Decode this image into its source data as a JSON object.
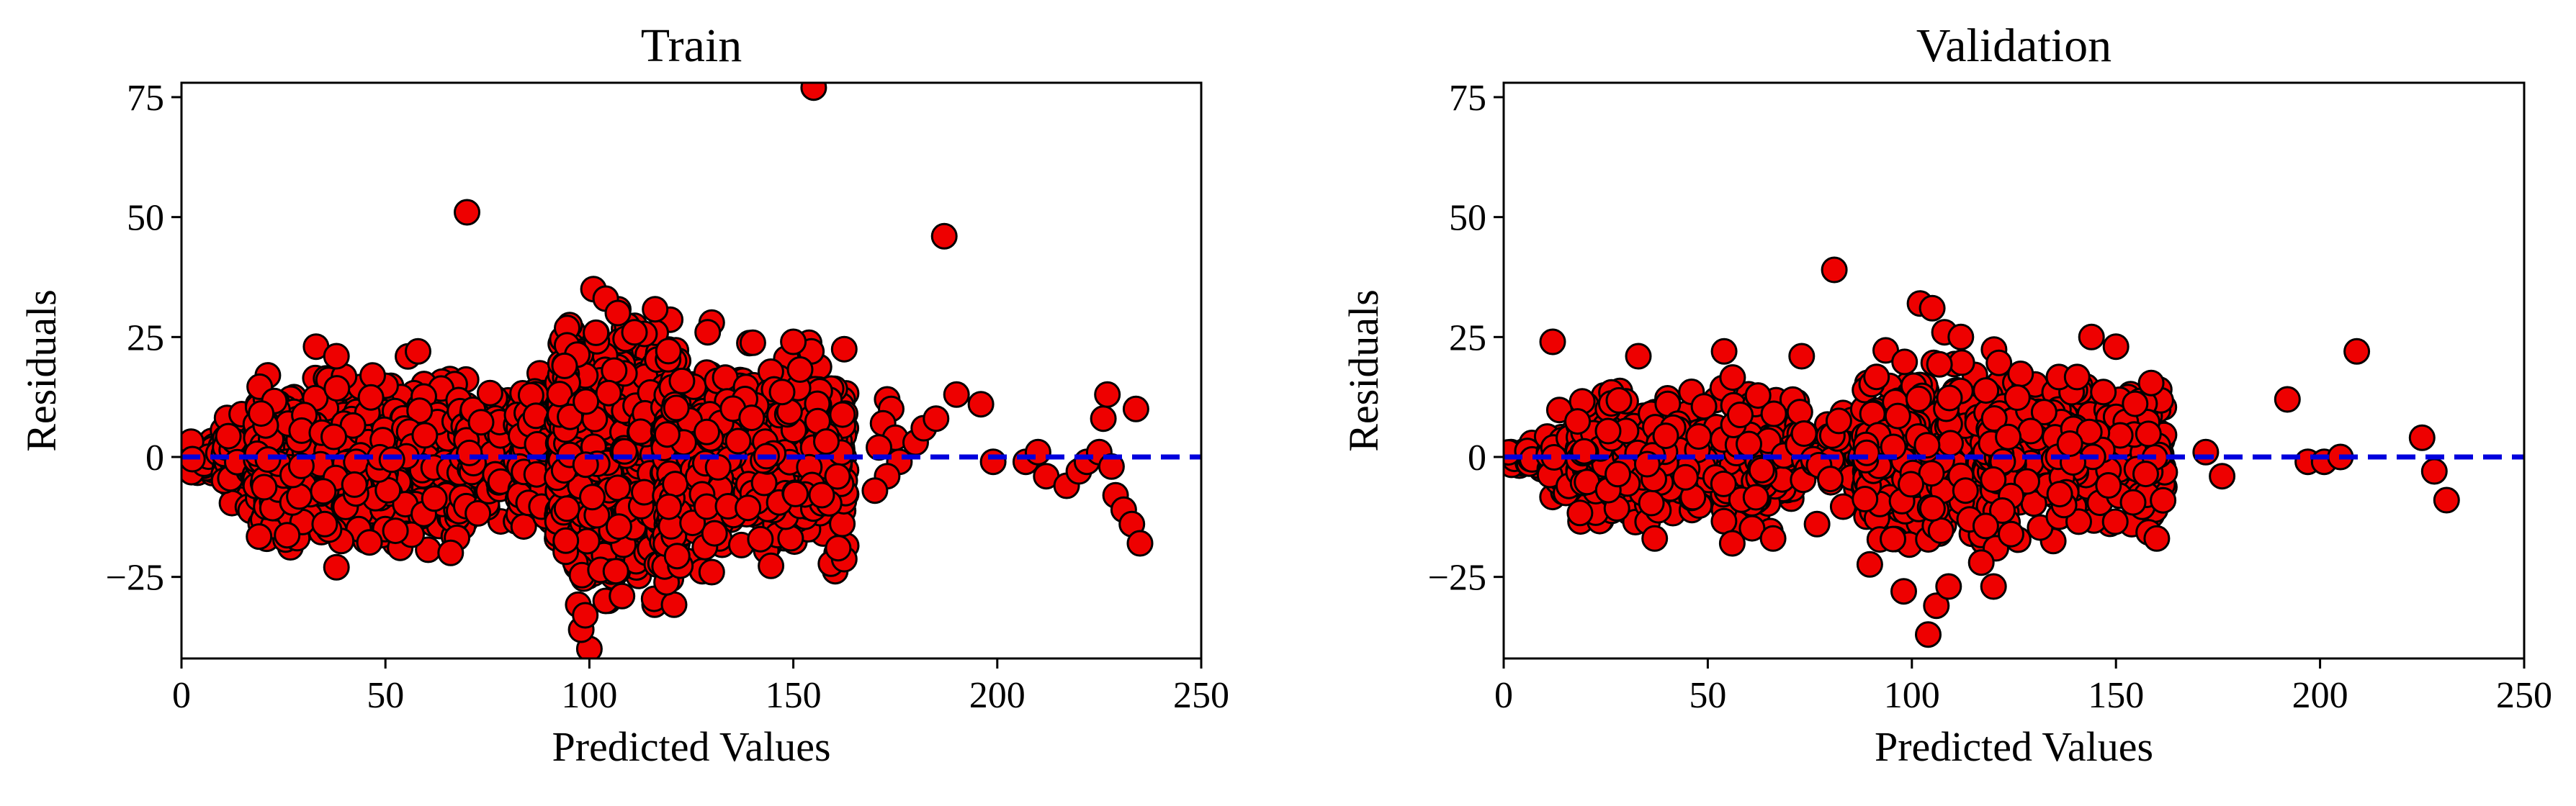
{
  "chart_data": [
    {
      "type": "scatter",
      "title": "Train",
      "xlabel": "Predicted Values",
      "ylabel": "Residuals",
      "xlim": [
        0,
        250
      ],
      "ylim": [
        -42,
        78
      ],
      "x_ticks": [
        0,
        50,
        100,
        150,
        200,
        250
      ],
      "x_tick_labels": [
        "0",
        "50",
        "100",
        "150",
        "200",
        "250"
      ],
      "y_ticks": [
        -25,
        0,
        25,
        50,
        75
      ],
      "y_tick_labels": [
        "−25",
        "0",
        "25",
        "50",
        "75"
      ],
      "grid": false,
      "reference_line": {
        "y": 0,
        "style": "dashed",
        "color": "#0000dd"
      },
      "marker_color": "#ee0000",
      "marker_edge_color": "#000000",
      "point_clusters": [
        {
          "x_range": [
            1,
            10
          ],
          "y_sd": 1.8,
          "count": 60
        },
        {
          "x_range": [
            10,
            20
          ],
          "y_sd": 4,
          "count": 120
        },
        {
          "x_range": [
            18,
            70
          ],
          "y_sd": 7.5,
          "count": 900
        },
        {
          "x_range": [
            68,
            82
          ],
          "y_sd": 6,
          "count": 80
        },
        {
          "x_range": [
            82,
            92
          ],
          "y_sd": 7,
          "count": 120
        },
        {
          "x_range": [
            92,
            122
          ],
          "y_sd": 11,
          "count": 1000
        },
        {
          "x_range": [
            118,
            163
          ],
          "y_sd": 8.5,
          "count": 800
        }
      ],
      "points": [
        {
          "x": 155,
          "y": 77
        },
        {
          "x": 70,
          "y": 51
        },
        {
          "x": 187,
          "y": 46
        },
        {
          "x": 101,
          "y": 35
        },
        {
          "x": 104,
          "y": 33
        },
        {
          "x": 107,
          "y": 30
        },
        {
          "x": 130,
          "y": 28
        },
        {
          "x": 129,
          "y": 26
        },
        {
          "x": 33,
          "y": 23
        },
        {
          "x": 58,
          "y": 22
        },
        {
          "x": 38,
          "y": 21
        },
        {
          "x": 150,
          "y": 24
        },
        {
          "x": 100,
          "y": -40
        },
        {
          "x": 98,
          "y": -36
        },
        {
          "x": 99,
          "y": -33
        },
        {
          "x": 104,
          "y": -30
        },
        {
          "x": 108,
          "y": -29
        },
        {
          "x": 38,
          "y": -23
        },
        {
          "x": 130,
          "y": -24
        },
        {
          "x": 66,
          "y": -20
        },
        {
          "x": 161,
          "y": -19
        },
        {
          "x": 173,
          "y": 12
        },
        {
          "x": 174,
          "y": 10
        },
        {
          "x": 172,
          "y": 7
        },
        {
          "x": 175,
          "y": 4
        },
        {
          "x": 171,
          "y": 2
        },
        {
          "x": 176,
          "y": -1
        },
        {
          "x": 173,
          "y": -4
        },
        {
          "x": 170,
          "y": -7
        },
        {
          "x": 180,
          "y": 3
        },
        {
          "x": 182,
          "y": 6
        },
        {
          "x": 185,
          "y": 8
        },
        {
          "x": 190,
          "y": 13
        },
        {
          "x": 196,
          "y": 11
        },
        {
          "x": 199,
          "y": -1
        },
        {
          "x": 207,
          "y": -1
        },
        {
          "x": 210,
          "y": 1
        },
        {
          "x": 212,
          "y": -4
        },
        {
          "x": 217,
          "y": -6
        },
        {
          "x": 220,
          "y": -3
        },
        {
          "x": 222,
          "y": -1
        },
        {
          "x": 225,
          "y": 1
        },
        {
          "x": 226,
          "y": 8
        },
        {
          "x": 227,
          "y": 13
        },
        {
          "x": 228,
          "y": -2
        },
        {
          "x": 229,
          "y": -8
        },
        {
          "x": 231,
          "y": -11
        },
        {
          "x": 233,
          "y": -14
        },
        {
          "x": 234,
          "y": 10
        },
        {
          "x": 235,
          "y": -18
        }
      ]
    },
    {
      "type": "scatter",
      "title": "Validation",
      "xlabel": "Predicted Values",
      "ylabel": "Residuals",
      "xlim": [
        0,
        250
      ],
      "ylim": [
        -42,
        78
      ],
      "x_ticks": [
        0,
        50,
        100,
        150,
        200,
        250
      ],
      "x_tick_labels": [
        "0",
        "50",
        "100",
        "150",
        "200",
        "250"
      ],
      "y_ticks": [
        -25,
        0,
        25,
        50,
        75
      ],
      "y_tick_labels": [
        "−25",
        "0",
        "25",
        "50",
        "75"
      ],
      "grid": false,
      "reference_line": {
        "y": 0,
        "style": "dashed",
        "color": "#0000dd"
      },
      "marker_color": "#ee0000",
      "marker_edge_color": "#000000",
      "point_clusters": [
        {
          "x_range": [
            1,
            10
          ],
          "y_sd": 1.5,
          "count": 30
        },
        {
          "x_range": [
            10,
            20
          ],
          "y_sd": 3.5,
          "count": 60
        },
        {
          "x_range": [
            18,
            72
          ],
          "y_sd": 6,
          "count": 450
        },
        {
          "x_range": [
            72,
            88
          ],
          "y_sd": 5,
          "count": 50
        },
        {
          "x_range": [
            88,
            122
          ],
          "y_sd": 8,
          "count": 450
        },
        {
          "x_range": [
            118,
            162
          ],
          "y_sd": 7,
          "count": 400
        }
      ],
      "points": [
        {
          "x": 81,
          "y": 39
        },
        {
          "x": 102,
          "y": 32
        },
        {
          "x": 105,
          "y": 31
        },
        {
          "x": 108,
          "y": 26
        },
        {
          "x": 112,
          "y": 25
        },
        {
          "x": 12,
          "y": 24
        },
        {
          "x": 144,
          "y": 25
        },
        {
          "x": 150,
          "y": 23
        },
        {
          "x": 33,
          "y": 21
        },
        {
          "x": 54,
          "y": 22
        },
        {
          "x": 73,
          "y": 21
        },
        {
          "x": 104,
          "y": -37
        },
        {
          "x": 106,
          "y": -31
        },
        {
          "x": 98,
          "y": -28
        },
        {
          "x": 109,
          "y": -27
        },
        {
          "x": 120,
          "y": -27
        },
        {
          "x": 117,
          "y": -22
        },
        {
          "x": 56,
          "y": -18
        },
        {
          "x": 66,
          "y": -17
        },
        {
          "x": 37,
          "y": -17
        },
        {
          "x": 160,
          "y": -17
        },
        {
          "x": 172,
          "y": 1
        },
        {
          "x": 176,
          "y": -4
        },
        {
          "x": 192,
          "y": 12
        },
        {
          "x": 197,
          "y": -1
        },
        {
          "x": 201,
          "y": -1
        },
        {
          "x": 205,
          "y": 0
        },
        {
          "x": 209,
          "y": 22
        },
        {
          "x": 225,
          "y": 4
        },
        {
          "x": 228,
          "y": -3
        },
        {
          "x": 231,
          "y": -9
        }
      ]
    }
  ]
}
